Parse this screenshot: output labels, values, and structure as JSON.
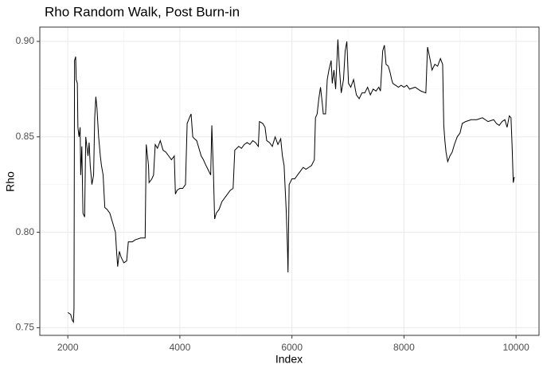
{
  "chart_data": {
    "type": "line",
    "title": "Rho Random Walk, Post Burn-in",
    "x_label": "Index",
    "y_label": "Rho",
    "color": "#000000",
    "grid": true,
    "x": [
      2000,
      2050,
      2080,
      2100,
      2110,
      2120,
      2140,
      2150,
      2170,
      2180,
      2200,
      2220,
      2230,
      2250,
      2270,
      2300,
      2320,
      2340,
      2360,
      2380,
      2400,
      2430,
      2460,
      2480,
      2500,
      2520,
      2550,
      2580,
      2600,
      2630,
      2660,
      2700,
      2750,
      2800,
      2850,
      2870,
      2890,
      2920,
      2950,
      3000,
      3050,
      3080,
      3150,
      3200,
      3300,
      3380,
      3400,
      3440,
      3450,
      3500,
      3530,
      3560,
      3600,
      3650,
      3700,
      3750,
      3800,
      3850,
      3900,
      3920,
      3950,
      4000,
      4050,
      4100,
      4130,
      4170,
      4200,
      4230,
      4260,
      4300,
      4340,
      4380,
      4420,
      4450,
      4500,
      4550,
      4570,
      4600,
      4620,
      4650,
      4700,
      4750,
      4800,
      4850,
      4900,
      4950,
      4980,
      5050,
      5100,
      5150,
      5200,
      5250,
      5300,
      5350,
      5400,
      5420,
      5480,
      5500,
      5520,
      5550,
      5600,
      5650,
      5700,
      5750,
      5800,
      5830,
      5860,
      5900,
      5920,
      5930,
      5950,
      6000,
      6050,
      6100,
      6150,
      6200,
      6250,
      6300,
      6350,
      6400,
      6420,
      6450,
      6480,
      6510,
      6540,
      6560,
      6600,
      6630,
      6660,
      6700,
      6720,
      6750,
      6780,
      6820,
      6850,
      6880,
      6920,
      6950,
      6980,
      7010,
      7050,
      7100,
      7150,
      7200,
      7250,
      7300,
      7350,
      7400,
      7450,
      7500,
      7550,
      7580,
      7620,
      7650,
      7680,
      7720,
      7750,
      7780,
      7800,
      7850,
      7900,
      7950,
      8000,
      8050,
      8100,
      8200,
      8300,
      8390,
      8420,
      8470,
      8500,
      8550,
      8600,
      8650,
      8690,
      8710,
      8730,
      8750,
      8780,
      8820,
      8860,
      8900,
      8950,
      9000,
      9040,
      9100,
      9200,
      9300,
      9400,
      9500,
      9600,
      9650,
      9700,
      9750,
      9800,
      9840,
      9880,
      9910,
      9930,
      9950,
      9970
    ],
    "values": [
      0.758,
      0.757,
      0.754,
      0.753,
      0.76,
      0.89,
      0.892,
      0.88,
      0.878,
      0.855,
      0.85,
      0.855,
      0.83,
      0.845,
      0.81,
      0.808,
      0.85,
      0.845,
      0.84,
      0.847,
      0.835,
      0.825,
      0.83,
      0.86,
      0.871,
      0.865,
      0.85,
      0.84,
      0.835,
      0.83,
      0.813,
      0.812,
      0.81,
      0.805,
      0.8,
      0.79,
      0.782,
      0.79,
      0.787,
      0.784,
      0.785,
      0.795,
      0.795,
      0.796,
      0.797,
      0.797,
      0.846,
      0.835,
      0.826,
      0.828,
      0.83,
      0.846,
      0.844,
      0.848,
      0.843,
      0.842,
      0.84,
      0.838,
      0.84,
      0.82,
      0.822,
      0.823,
      0.823,
      0.825,
      0.857,
      0.86,
      0.862,
      0.85,
      0.849,
      0.848,
      0.844,
      0.84,
      0.838,
      0.836,
      0.833,
      0.83,
      0.856,
      0.83,
      0.807,
      0.81,
      0.812,
      0.816,
      0.818,
      0.82,
      0.822,
      0.823,
      0.843,
      0.845,
      0.844,
      0.846,
      0.847,
      0.846,
      0.848,
      0.847,
      0.845,
      0.858,
      0.857,
      0.856,
      0.855,
      0.848,
      0.847,
      0.845,
      0.85,
      0.846,
      0.849,
      0.84,
      0.835,
      0.81,
      0.792,
      0.779,
      0.825,
      0.828,
      0.828,
      0.83,
      0.832,
      0.834,
      0.833,
      0.834,
      0.835,
      0.838,
      0.86,
      0.862,
      0.87,
      0.876,
      0.868,
      0.862,
      0.862,
      0.88,
      0.885,
      0.89,
      0.878,
      0.885,
      0.875,
      0.901,
      0.885,
      0.873,
      0.88,
      0.895,
      0.9,
      0.878,
      0.876,
      0.88,
      0.872,
      0.87,
      0.873,
      0.873,
      0.876,
      0.872,
      0.875,
      0.874,
      0.876,
      0.874,
      0.895,
      0.898,
      0.888,
      0.887,
      0.884,
      0.88,
      0.878,
      0.877,
      0.876,
      0.877,
      0.876,
      0.877,
      0.875,
      0.876,
      0.874,
      0.873,
      0.897,
      0.89,
      0.885,
      0.888,
      0.887,
      0.891,
      0.888,
      0.856,
      0.848,
      0.842,
      0.837,
      0.84,
      0.842,
      0.846,
      0.85,
      0.852,
      0.857,
      0.858,
      0.859,
      0.859,
      0.86,
      0.858,
      0.859,
      0.857,
      0.856,
      0.858,
      0.859,
      0.855,
      0.861,
      0.86,
      0.845,
      0.826,
      0.829
    ],
    "xlim": [
      1500,
      10410
    ],
    "ylim": [
      0.746,
      0.9075
    ],
    "xticks": [
      2000,
      4000,
      6000,
      8000,
      10000
    ],
    "yticks": [
      0.75,
      {
        "value": 0.8,
        "label": "0.80"
      },
      0.85,
      {
        "value": 0.9,
        "label": "0.90"
      }
    ],
    "x_minor_breaks": [
      3000,
      5000,
      7000,
      9000
    ],
    "y_minor_breaks": [
      0.775,
      0.825,
      0.875
    ]
  }
}
